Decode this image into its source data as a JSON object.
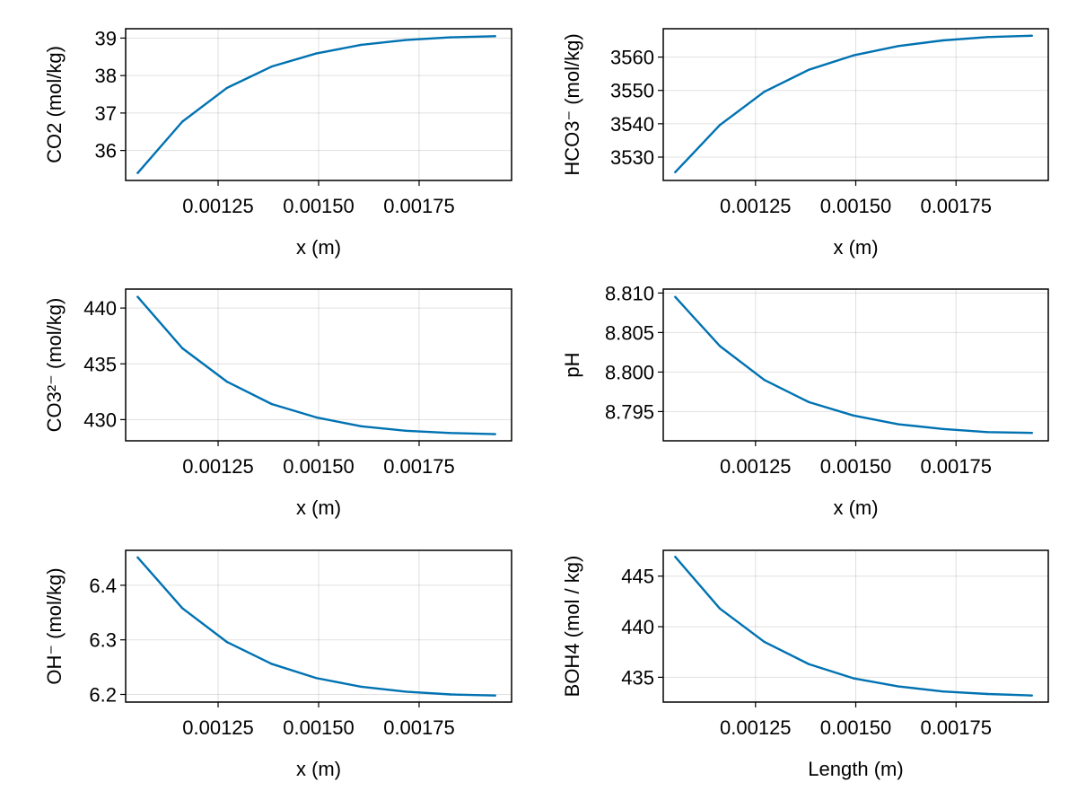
{
  "colors": {
    "series": "#0072b2"
  },
  "chart_data": [
    {
      "type": "line",
      "xlabel": "x (m)",
      "ylabel": "CO2 (mol/kg)",
      "xlim": [
        0.00102,
        0.00198
      ],
      "ylim": [
        35.2,
        39.25
      ],
      "xticks": [
        "0.00125",
        "0.00150",
        "0.00175"
      ],
      "yticks": [
        "36",
        "37",
        "38",
        "39"
      ],
      "grid": true,
      "x": [
        0.00105,
        0.001161,
        0.001272,
        0.001383,
        0.001494,
        0.001606,
        0.001717,
        0.001828,
        0.001939
      ],
      "y": [
        35.4,
        36.77,
        37.67,
        38.24,
        38.59,
        38.82,
        38.95,
        39.02,
        39.05
      ]
    },
    {
      "type": "line",
      "xlabel": "x (m)",
      "ylabel": "HCO3⁻ (mol/kg)",
      "xlim": [
        0.00102,
        0.00198
      ],
      "ylim": [
        3523,
        3568.5
      ],
      "xticks": [
        "0.00125",
        "0.00150",
        "0.00175"
      ],
      "yticks": [
        "3530",
        "3540",
        "3550",
        "3560"
      ],
      "grid": true,
      "x": [
        0.00105,
        0.001161,
        0.001272,
        0.001383,
        0.001494,
        0.001606,
        0.001717,
        0.001828,
        0.001939
      ],
      "y": [
        3525.5,
        3539.6,
        3549.6,
        3556.2,
        3560.5,
        3563.3,
        3565.0,
        3566.0,
        3566.4
      ]
    },
    {
      "type": "line",
      "xlabel": "x (m)",
      "ylabel": "CO3²⁻ (mol/kg)",
      "xlim": [
        0.00102,
        0.00198
      ],
      "ylim": [
        428.1,
        441.7
      ],
      "xticks": [
        "0.00125",
        "0.00150",
        "0.00175"
      ],
      "yticks": [
        "430",
        "435",
        "440"
      ],
      "grid": true,
      "x": [
        0.00105,
        0.001161,
        0.001272,
        0.001383,
        0.001494,
        0.001606,
        0.001717,
        0.001828,
        0.001939
      ],
      "y": [
        441.0,
        436.4,
        433.4,
        431.4,
        430.2,
        429.4,
        429.0,
        428.8,
        428.7
      ]
    },
    {
      "type": "line",
      "xlabel": "x (m)",
      "ylabel": "pH",
      "xlim": [
        0.00102,
        0.00198
      ],
      "ylim": [
        8.7913,
        8.8105
      ],
      "xticks": [
        "0.00125",
        "0.00150",
        "0.00175"
      ],
      "yticks": [
        "8.795",
        "8.800",
        "8.805",
        "8.810"
      ],
      "grid": true,
      "x": [
        0.00105,
        0.001161,
        0.001272,
        0.001383,
        0.001494,
        0.001606,
        0.001717,
        0.001828,
        0.001939
      ],
      "y": [
        8.8095,
        8.8033,
        8.799,
        8.7962,
        8.7945,
        8.7934,
        8.7928,
        8.7924,
        8.7923
      ]
    },
    {
      "type": "line",
      "xlabel": "x (m)",
      "ylabel": "OH⁻ (mol/kg)",
      "xlim": [
        0.00102,
        0.00198
      ],
      "ylim": [
        6.186,
        6.464
      ],
      "xticks": [
        "0.00125",
        "0.00150",
        "0.00175"
      ],
      "yticks": [
        "6.2",
        "6.3",
        "6.4"
      ],
      "grid": true,
      "x": [
        0.00105,
        0.001161,
        0.001272,
        0.001383,
        0.001494,
        0.001606,
        0.001717,
        0.001828,
        0.001939
      ],
      "y": [
        6.451,
        6.358,
        6.296,
        6.256,
        6.23,
        6.214,
        6.205,
        6.2,
        6.198
      ]
    },
    {
      "type": "line",
      "xlabel": "Length (m)",
      "ylabel": "BOH4 (mol / kg)",
      "xlim": [
        0.00102,
        0.00198
      ],
      "ylim": [
        432.55,
        447.55
      ],
      "xticks": [
        "0.00125",
        "0.00150",
        "0.00175"
      ],
      "yticks": [
        "435",
        "440",
        "445"
      ],
      "grid": true,
      "x": [
        0.00105,
        0.001161,
        0.001272,
        0.001383,
        0.001494,
        0.001606,
        0.001717,
        0.001828,
        0.001939
      ],
      "y": [
        446.9,
        441.8,
        438.5,
        436.3,
        434.9,
        434.1,
        433.6,
        433.35,
        433.2
      ]
    }
  ]
}
